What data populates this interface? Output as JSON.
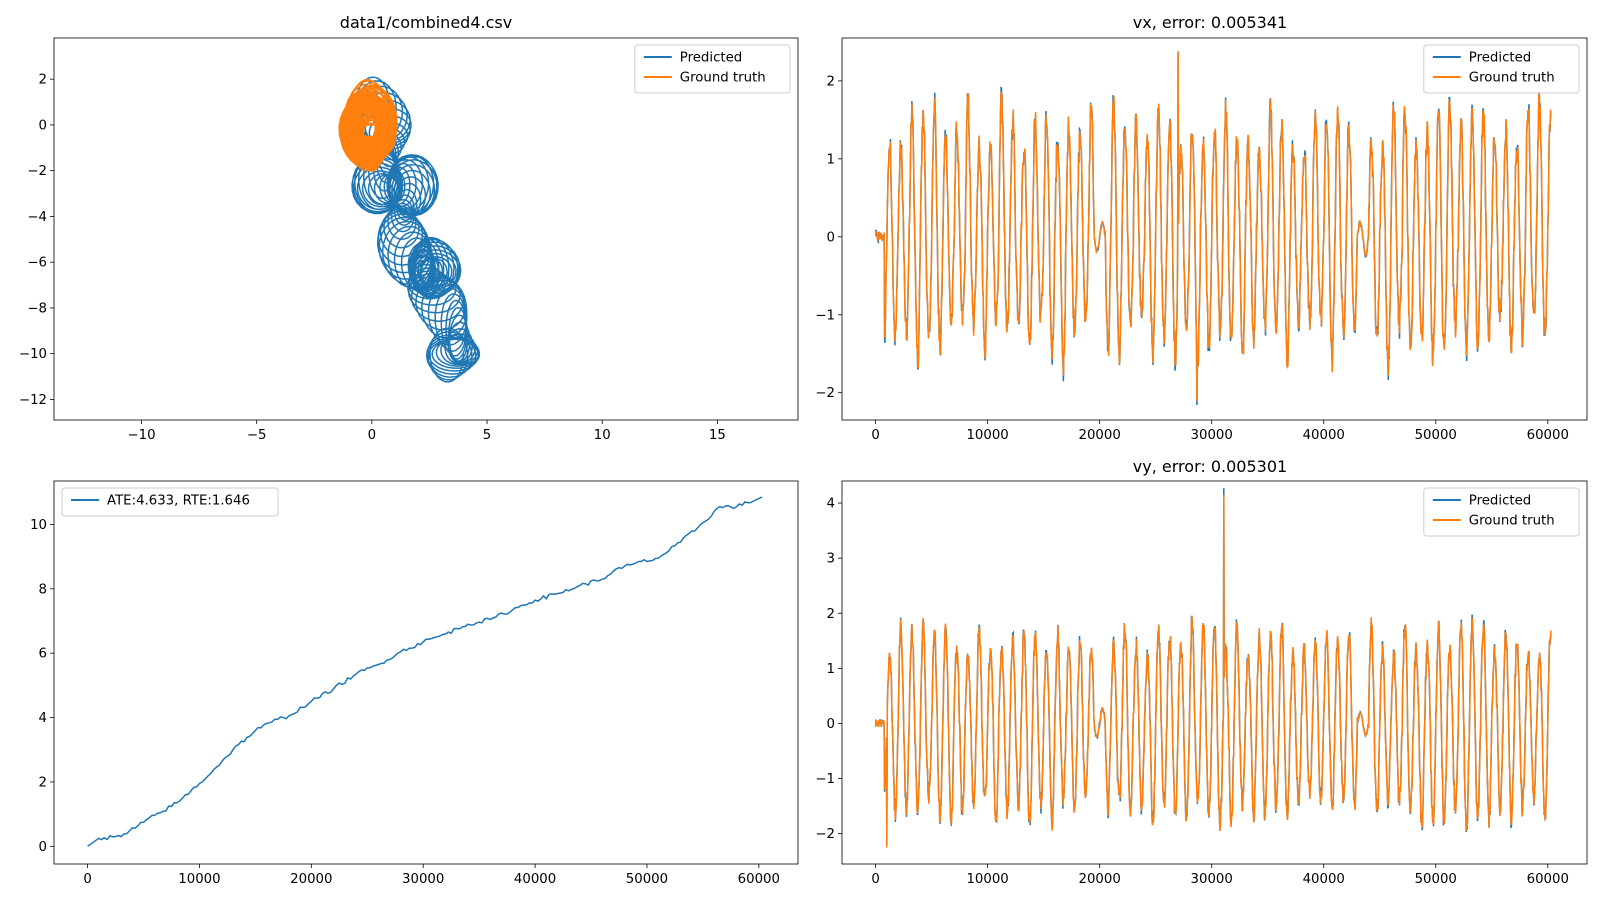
{
  "colors": {
    "predicted": "#1f77b4",
    "ground_truth": "#ff7f0e"
  },
  "chart_data": [
    {
      "id": "trajectory",
      "type": "line",
      "title": "data1/combined4.csv",
      "xlabel": "",
      "ylabel": "",
      "xlim": [
        -13.8,
        18.5
      ],
      "ylim": [
        -12.9,
        3.8
      ],
      "xticks": [
        -10,
        -5,
        0,
        5,
        10,
        15
      ],
      "yticks": [
        2,
        0,
        -2,
        -4,
        -6,
        -8,
        -10,
        -12
      ],
      "xtick_labels": [
        "−10",
        "−5",
        "0",
        "5",
        "10",
        "15"
      ],
      "ytick_labels": [
        "2",
        "0",
        "−2",
        "−4",
        "−6",
        "−8",
        "−10",
        "−12"
      ],
      "grid": false,
      "legend": "top-right",
      "series": [
        {
          "name": "Predicted",
          "color": "#1f77b4",
          "shape": "loops",
          "center_start": [
            0.0,
            0.0
          ],
          "center_end": [
            3.7,
            -9.8
          ],
          "x_radius": 1.0,
          "y_radius": 1.2
        },
        {
          "name": "Ground truth",
          "color": "#ff7f0e",
          "shape": "loops",
          "center_start": [
            -0.2,
            0.2
          ],
          "center_end": [
            -0.1,
            -0.5
          ],
          "x_radius": 1.0,
          "y_radius": 1.4
        }
      ]
    },
    {
      "id": "vx",
      "type": "line",
      "title": "vx, error: 0.005341",
      "xlabel": "",
      "ylabel": "",
      "xlim": [
        -3000,
        63500
      ],
      "ylim": [
        -2.35,
        2.55
      ],
      "xticks": [
        0,
        10000,
        20000,
        30000,
        40000,
        50000,
        60000
      ],
      "yticks": [
        2,
        1,
        0,
        -1,
        -2
      ],
      "xtick_labels": [
        "0",
        "10000",
        "20000",
        "30000",
        "40000",
        "50000",
        "60000"
      ],
      "ytick_labels": [
        "2",
        "1",
        "0",
        "−1",
        "−2"
      ],
      "grid": false,
      "legend": "top-right",
      "x_range": [
        0,
        60300
      ],
      "oscillation": {
        "period": 1000,
        "upper_range": [
          1.1,
          1.8
        ],
        "lower_range": [
          -1.65,
          -1.0
        ]
      },
      "spikes": [
        {
          "x": 27000,
          "y": 2.38
        },
        {
          "x": 28700,
          "y": -2.1
        }
      ],
      "series": [
        {
          "name": "Predicted",
          "color": "#1f77b4"
        },
        {
          "name": "Ground truth",
          "color": "#ff7f0e"
        }
      ]
    },
    {
      "id": "ate",
      "type": "line",
      "title": "",
      "xlabel": "",
      "ylabel": "",
      "xlim": [
        -3000,
        63500
      ],
      "ylim": [
        -0.55,
        11.35
      ],
      "xticks": [
        0,
        10000,
        20000,
        30000,
        40000,
        50000,
        60000
      ],
      "yticks": [
        0,
        2,
        4,
        6,
        8,
        10
      ],
      "xtick_labels": [
        "0",
        "10000",
        "20000",
        "30000",
        "40000",
        "50000",
        "60000"
      ],
      "ytick_labels": [
        "0",
        "2",
        "4",
        "6",
        "8",
        "10"
      ],
      "grid": false,
      "legend": "top-left",
      "series": [
        {
          "name": "ATE:4.633, RTE:1.646",
          "color": "#1f77b4",
          "x": [
            0,
            1000,
            3000,
            5000,
            8000,
            10000,
            11500,
            13000,
            15000,
            17000,
            18000,
            20000,
            22000,
            24000,
            26000,
            28000,
            30000,
            32000,
            34000,
            36000,
            38000,
            40000,
            42000,
            44000,
            46000,
            47000,
            49000,
            51000,
            53000,
            55000,
            56500,
            58000,
            60300
          ],
          "y": [
            0.0,
            0.25,
            0.3,
            0.75,
            1.35,
            1.95,
            2.45,
            3.0,
            3.6,
            3.95,
            4.05,
            4.5,
            4.9,
            5.35,
            5.65,
            6.05,
            6.35,
            6.6,
            6.9,
            7.05,
            7.35,
            7.65,
            7.85,
            8.1,
            8.3,
            8.55,
            8.8,
            8.95,
            9.45,
            10.05,
            10.55,
            10.55,
            10.85
          ]
        }
      ]
    },
    {
      "id": "vy",
      "type": "line",
      "title": "vy, error: 0.005301",
      "xlabel": "",
      "ylabel": "",
      "xlim": [
        -3000,
        63500
      ],
      "ylim": [
        -2.55,
        4.4
      ],
      "xticks": [
        0,
        10000,
        20000,
        30000,
        40000,
        50000,
        60000
      ],
      "yticks": [
        4,
        3,
        2,
        1,
        0,
        -1,
        -2
      ],
      "xtick_labels": [
        "0",
        "10000",
        "20000",
        "30000",
        "40000",
        "50000",
        "60000"
      ],
      "ytick_labels": [
        "4",
        "3",
        "2",
        "1",
        "0",
        "−1",
        "−2"
      ],
      "grid": false,
      "legend": "top-right",
      "x_range": [
        0,
        60300
      ],
      "oscillation": {
        "period": 1000,
        "upper_range": [
          1.2,
          1.85
        ],
        "lower_range": [
          -1.85,
          -1.3
        ]
      },
      "spikes": [
        {
          "x": 31100,
          "y": 4.15
        },
        {
          "x": 1000,
          "y": -2.25
        }
      ],
      "series": [
        {
          "name": "Predicted",
          "color": "#1f77b4"
        },
        {
          "name": "Ground truth",
          "color": "#ff7f0e"
        }
      ]
    }
  ]
}
